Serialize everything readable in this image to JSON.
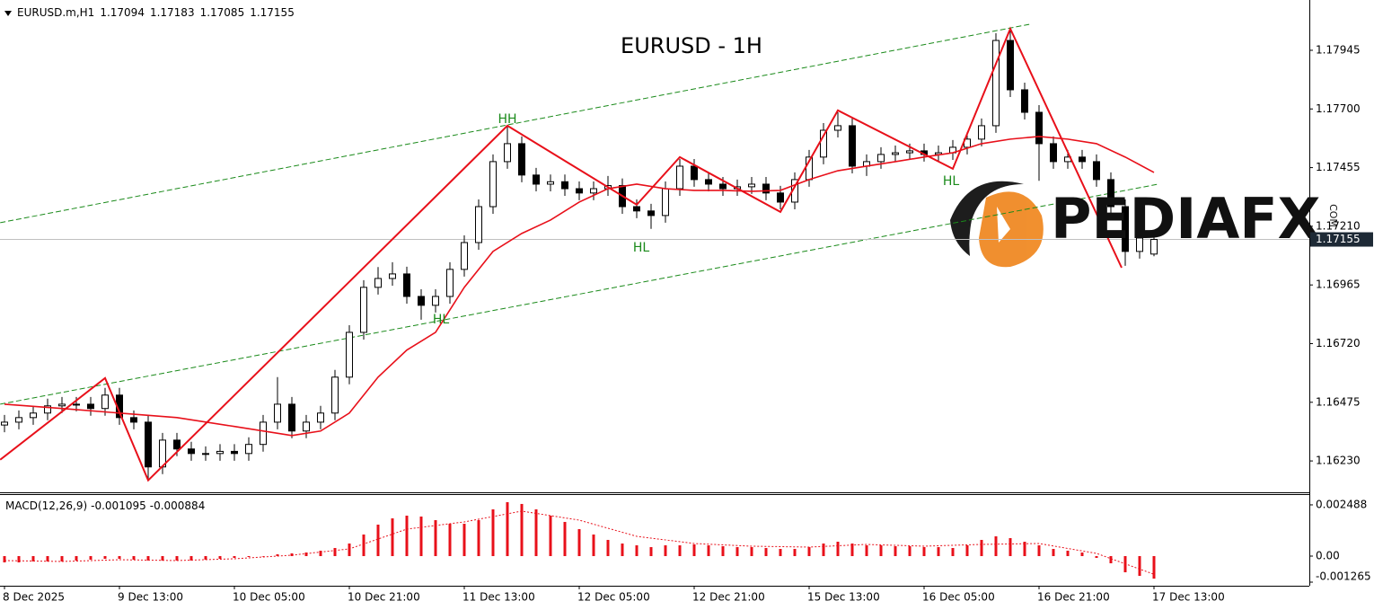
{
  "chart_data": [
    {
      "type": "candlestick",
      "title": "EURUSD - 1H",
      "symbol": "EURUSD.m,H1",
      "x": [
        0,
        2,
        4,
        6,
        8,
        10,
        12,
        14,
        16,
        18,
        20,
        22,
        24,
        26,
        28,
        30,
        32,
        34,
        36,
        38,
        40,
        42,
        44,
        46,
        48,
        50,
        52,
        54,
        56,
        58,
        60,
        62,
        64,
        66,
        68,
        70,
        72,
        74,
        76,
        78,
        80,
        82,
        84,
        86,
        88,
        90,
        92,
        94,
        96,
        98,
        100,
        102,
        104,
        106,
        108,
        110,
        112,
        114,
        116,
        118,
        120,
        122,
        124,
        126,
        128,
        130,
        132,
        134,
        136,
        138,
        140,
        142,
        144,
        146,
        148,
        150,
        152,
        154,
        156,
        158,
        160
      ],
      "open": [
        1.1638,
        1.16392,
        1.16411,
        1.1643,
        1.1646,
        1.16467,
        1.16467,
        1.16449,
        1.16505,
        1.16411,
        1.16392,
        1.16205,
        1.16317,
        1.1628,
        1.16261,
        1.16261,
        1.1627,
        1.16261,
        1.16299,
        1.16392,
        1.16467,
        1.16355,
        1.16392,
        1.1643,
        1.1658,
        1.16767,
        1.16955,
        1.16992,
        1.17011,
        1.16917,
        1.1688,
        1.16917,
        1.1703,
        1.17142,
        1.17292,
        1.1748,
        1.17555,
        1.17424,
        1.17386,
        1.17396,
        1.17367,
        1.17349,
        1.17367,
        1.1738,
        1.17292,
        1.17274,
        1.17255,
        1.17367,
        1.17461,
        1.17405,
        1.17386,
        1.17367,
        1.17375,
        1.17386,
        1.17349,
        1.17311,
        1.17405,
        1.17499,
        1.17611,
        1.1763,
        1.17461,
        1.1748,
        1.1751,
        1.17517,
        1.17525,
        1.1751,
        1.17517,
        1.1754,
        1.17574,
        1.1763,
        1.17986,
        1.1778,
        1.17686,
        1.17555,
        1.1748,
        1.17499,
        1.1748,
        1.17405,
        1.17292,
        1.17105,
        1.17094
      ],
      "high": [
        1.16422,
        1.16441,
        1.1646,
        1.1649,
        1.16497,
        1.16497,
        1.16497,
        1.16535,
        1.16535,
        1.16441,
        1.16422,
        1.16347,
        1.16347,
        1.1631,
        1.16291,
        1.163,
        1.163,
        1.16329,
        1.16422,
        1.1658,
        1.16497,
        1.16422,
        1.1646,
        1.1661,
        1.16797,
        1.16985,
        1.1704,
        1.1706,
        1.17041,
        1.16947,
        1.16947,
        1.1706,
        1.17172,
        1.17322,
        1.1751,
        1.1763,
        1.17585,
        1.17454,
        1.17426,
        1.17426,
        1.17397,
        1.17397,
        1.1742,
        1.1741,
        1.17322,
        1.17304,
        1.17397,
        1.17491,
        1.17491,
        1.17435,
        1.17416,
        1.17405,
        1.17416,
        1.17416,
        1.17379,
        1.17435,
        1.17529,
        1.17641,
        1.17686,
        1.1766,
        1.1751,
        1.1754,
        1.17547,
        1.17555,
        1.17555,
        1.17547,
        1.1757,
        1.17604,
        1.1766,
        1.18016,
        1.18035,
        1.1781,
        1.17716,
        1.17585,
        1.17529,
        1.17529,
        1.1751,
        1.17435,
        1.17322,
        1.17191,
        1.17183
      ],
      "low": [
        1.1635,
        1.16362,
        1.16381,
        1.164,
        1.1643,
        1.16437,
        1.16419,
        1.16419,
        1.16381,
        1.16362,
        1.16149,
        1.16175,
        1.1625,
        1.16231,
        1.16231,
        1.16231,
        1.16231,
        1.16231,
        1.16269,
        1.16362,
        1.16325,
        1.16325,
        1.16362,
        1.164,
        1.1655,
        1.16737,
        1.16925,
        1.16962,
        1.16887,
        1.1682,
        1.1685,
        1.16887,
        1.17,
        1.17112,
        1.17262,
        1.1745,
        1.17394,
        1.17356,
        1.17356,
        1.17337,
        1.17319,
        1.17319,
        1.17337,
        1.17262,
        1.17244,
        1.17199,
        1.17225,
        1.17337,
        1.17375,
        1.17356,
        1.17337,
        1.17337,
        1.17345,
        1.17319,
        1.17281,
        1.17281,
        1.17375,
        1.17469,
        1.17581,
        1.17431,
        1.1742,
        1.1745,
        1.1748,
        1.17487,
        1.1748,
        1.1748,
        1.17487,
        1.1751,
        1.17544,
        1.176,
        1.1775,
        1.17656,
        1.174,
        1.1745,
        1.1745,
        1.1745,
        1.17375,
        1.17262,
        1.17045,
        1.17075,
        1.17085
      ],
      "close": [
        1.16392,
        1.16411,
        1.1643,
        1.1646,
        1.16467,
        1.16467,
        1.16449,
        1.16505,
        1.16411,
        1.16392,
        1.16205,
        1.16317,
        1.1628,
        1.16261,
        1.16261,
        1.1627,
        1.16261,
        1.16299,
        1.16392,
        1.16467,
        1.16355,
        1.16392,
        1.1643,
        1.1658,
        1.16767,
        1.16955,
        1.16992,
        1.17011,
        1.16917,
        1.1688,
        1.16917,
        1.1703,
        1.17142,
        1.17292,
        1.1748,
        1.17555,
        1.17424,
        1.17386,
        1.17396,
        1.17367,
        1.17349,
        1.17367,
        1.1738,
        1.17292,
        1.17274,
        1.17255,
        1.17367,
        1.17461,
        1.17405,
        1.17386,
        1.17367,
        1.17375,
        1.17386,
        1.17349,
        1.17311,
        1.17405,
        1.17499,
        1.17611,
        1.1763,
        1.17461,
        1.1748,
        1.1751,
        1.17517,
        1.17525,
        1.1751,
        1.17517,
        1.1754,
        1.17574,
        1.1763,
        1.17986,
        1.1778,
        1.17686,
        1.17555,
        1.1748,
        1.17499,
        1.1748,
        1.17405,
        1.17292,
        1.17105,
        1.17161,
        1.17155
      ],
      "up_color": "#ffffff",
      "down_color": "#000000",
      "ma": {
        "color": "#e8101a",
        "x": [
          0,
          8,
          16,
          24,
          32,
          40,
          44,
          48,
          52,
          56,
          60,
          64,
          68,
          72,
          76,
          80,
          84,
          88,
          92,
          96,
          100,
          104,
          108,
          112,
          116,
          120,
          124,
          128,
          132,
          136,
          140,
          144,
          148,
          152,
          156,
          160
        ],
        "values": [
          1.16467,
          1.16449,
          1.1643,
          1.16411,
          1.16374,
          1.16336,
          1.16355,
          1.1643,
          1.1658,
          1.16693,
          1.16767,
          1.16955,
          1.17105,
          1.1718,
          1.17236,
          1.17311,
          1.17367,
          1.17386,
          1.17367,
          1.1736,
          1.1736,
          1.17356,
          1.1736,
          1.17405,
          1.17442,
          1.17461,
          1.1748,
          1.17499,
          1.17517,
          1.17555,
          1.17574,
          1.17585,
          1.17574,
          1.17555,
          1.17499,
          1.17435
        ]
      },
      "zigzag": {
        "color": "#e8101a",
        "x": [
          -0.6,
          14,
          20,
          70,
          88,
          94,
          108,
          116,
          132,
          140,
          155.5
        ],
        "values": [
          1.16235,
          1.16576,
          1.16149,
          1.1763,
          1.173,
          1.17499,
          1.1727,
          1.17694,
          1.1745,
          1.18035,
          1.17037
        ]
      },
      "channel": {
        "color": "#1a8a1a",
        "lines": [
          {
            "x": [
              -0.6,
              142.75
            ],
            "values": [
              1.17225,
              1.18054
            ]
          },
          {
            "x": [
              -0.6,
              160.6
            ],
            "values": [
              1.16467,
              1.17386
            ]
          }
        ]
      },
      "annotations": [
        "HH",
        "HL",
        "HL",
        "HL"
      ],
      "annotation_color": "#1a8a1a",
      "watermark": "PEDIAFX",
      "watermark_suffix": "COM",
      "xlim": [
        -0.625,
        181.625
      ],
      "xticks": [
        {
          "value": 0,
          "label": "8 Dec 2025"
        },
        {
          "value": 16,
          "label": "9 Dec 13:00"
        },
        {
          "value": 32,
          "label": "10 Dec 05:00"
        },
        {
          "value": 48,
          "label": "10 Dec 21:00"
        },
        {
          "value": 64,
          "label": "11 Dec 13:00"
        },
        {
          "value": 80,
          "label": "12 Dec 05:00"
        },
        {
          "value": 96,
          "label": "12 Dec 21:00"
        },
        {
          "value": 112,
          "label": "15 Dec 13:00"
        },
        {
          "value": 128,
          "label": "16 Dec 05:00"
        },
        {
          "value": 144,
          "label": "16 Dec 21:00"
        },
        {
          "value": 160,
          "label": "17 Dec 13:00"
        }
      ],
      "ylim": [
        1.16099,
        1.18155
      ],
      "yticks": [
        1.17945,
        {
          "value": 1.177,
          "label": "1.17700"
        },
        1.17455,
        {
          "value": 1.1721,
          "label": "1.17210"
        },
        1.16965,
        {
          "value": 1.1672,
          "label": "1.16720"
        },
        1.16475,
        {
          "value": 1.1623,
          "label": "1.16230"
        }
      ]
    },
    {
      "type": "macd",
      "label": "MACD(12,26,9)",
      "color": "#e8101a",
      "x": [
        0,
        2,
        4,
        6,
        8,
        10,
        12,
        14,
        16,
        18,
        20,
        22,
        24,
        26,
        28,
        30,
        32,
        34,
        36,
        38,
        40,
        42,
        44,
        46,
        48,
        50,
        52,
        54,
        56,
        58,
        60,
        62,
        64,
        66,
        68,
        70,
        72,
        74,
        76,
        78,
        80,
        82,
        84,
        86,
        88,
        90,
        92,
        94,
        96,
        98,
        100,
        102,
        104,
        106,
        108,
        110,
        112,
        114,
        116,
        118,
        120,
        122,
        124,
        126,
        128,
        130,
        132,
        134,
        136,
        138,
        140,
        142,
        144,
        146,
        148,
        150,
        152,
        154,
        156,
        158,
        160
      ],
      "values": [
        -0.000306,
        -0.000306,
        -0.000262,
        -0.000262,
        -0.000262,
        -0.000218,
        -0.000175,
        -0.000131,
        -0.000131,
        -0.000175,
        -0.000218,
        -0.000218,
        -0.000218,
        -0.000218,
        -0.000175,
        -0.000131,
        -8.7e-05,
        -4.4e-05,
        0,
        8.7e-05,
        0.000131,
        0.000175,
        0.000262,
        0.000393,
        0.000611,
        0.001048,
        0.001528,
        0.001833,
        0.001964,
        0.001921,
        0.001746,
        0.001571,
        0.001571,
        0.001746,
        0.00227,
        0.002619,
        0.002532,
        0.00227,
        0.001964,
        0.001659,
        0.00131,
        0.001048,
        0.000786,
        0.000611,
        0.000524,
        0.000437,
        0.000524,
        0.000524,
        0.000567,
        0.000524,
        0.00048,
        0.000437,
        0.000437,
        0.000393,
        0.000349,
        0.000349,
        0.000437,
        0.000611,
        0.000698,
        0.000611,
        0.000524,
        0.000524,
        0.00048,
        0.00048,
        0.000437,
        0.000437,
        0.000393,
        0.000524,
        0.000786,
        0.00096,
        0.000873,
        0.000698,
        0.000524,
        0.000349,
        0.000262,
        0.000175,
        -8.7e-05,
        -0.000349,
        -0.000786,
        -0.00096,
        -0.001095
      ],
      "signal": {
        "x": [
          0,
          8,
          16,
          24,
          32,
          40,
          48,
          56,
          64,
          72,
          80,
          88,
          96,
          104,
          112,
          120,
          128,
          136,
          144,
          152,
          160
        ],
        "values": [
          -0.000218,
          -0.000262,
          -0.000175,
          -0.000218,
          -0.000131,
          4.4e-05,
          0.000349,
          0.00131,
          0.001659,
          0.002183,
          0.001746,
          0.00096,
          0.000611,
          0.00048,
          0.000437,
          0.000567,
          0.00048,
          0.000567,
          0.000611,
          0.000131,
          -0.000884
        ]
      },
      "ylim": [
        -0.00144,
        0.00301
      ],
      "yticks": [
        0.002488,
        {
          "value": 0,
          "label": "0.00"
        },
        -0.001265
      ]
    }
  ]
}
